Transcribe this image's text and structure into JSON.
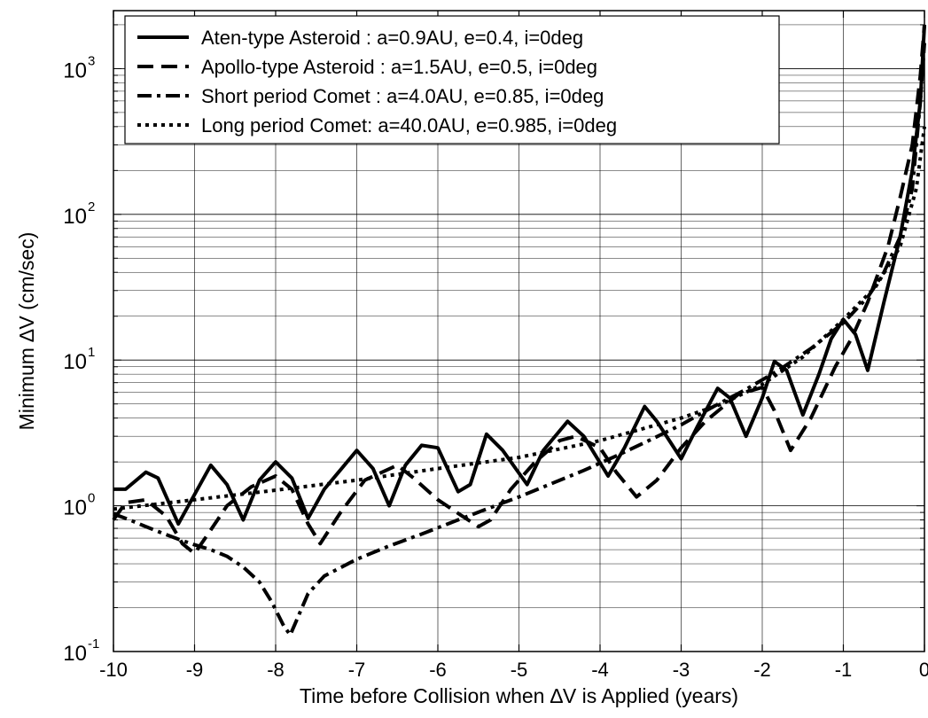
{
  "chart_data": {
    "type": "line",
    "title": "",
    "xlabel": "Time before Collision when ∆V is Applied (years)",
    "ylabel": "Minimum  ∆V (cm/sec)",
    "xlim": [
      -10,
      0
    ],
    "ylim": [
      0.1,
      2500
    ],
    "yscale": "log",
    "grid": true,
    "legend_position": "top-left",
    "x_ticks": [
      "-10",
      "-9",
      "-8",
      "-7",
      "-6",
      "-5",
      "-4",
      "-3",
      "-2",
      "-1",
      "0"
    ],
    "y_ticks": [
      {
        "base": "10",
        "exp": "-1"
      },
      {
        "base": "10",
        "exp": "0"
      },
      {
        "base": "10",
        "exp": "1"
      },
      {
        "base": "10",
        "exp": "2"
      },
      {
        "base": "10",
        "exp": "3"
      }
    ],
    "series": [
      {
        "name": "Aten-type Asteroid : a=0.9AU, e=0.4, i=0deg",
        "style": "solid",
        "color": "#000000",
        "x": [
          -10.0,
          -9.85,
          -9.6,
          -9.45,
          -9.2,
          -9.1,
          -8.8,
          -8.6,
          -8.4,
          -8.2,
          -8.0,
          -7.8,
          -7.6,
          -7.4,
          -7.0,
          -6.8,
          -6.6,
          -6.4,
          -6.2,
          -6.0,
          -5.75,
          -5.6,
          -5.4,
          -5.2,
          -4.9,
          -4.7,
          -4.4,
          -4.2,
          -3.9,
          -3.7,
          -3.45,
          -3.3,
          -3.0,
          -2.8,
          -2.55,
          -2.4,
          -2.2,
          -2.0,
          -1.85,
          -1.7,
          -1.5,
          -1.3,
          -1.15,
          -1.0,
          -0.85,
          -0.7,
          -0.5,
          -0.3,
          -0.15,
          -0.05,
          0.0
        ],
        "y": [
          1.3,
          1.3,
          1.7,
          1.55,
          0.75,
          0.95,
          1.9,
          1.4,
          0.8,
          1.5,
          2.0,
          1.55,
          0.82,
          1.3,
          2.4,
          1.8,
          1.0,
          1.9,
          2.6,
          2.5,
          1.25,
          1.4,
          3.1,
          2.4,
          1.4,
          2.4,
          3.8,
          3.0,
          1.6,
          2.5,
          4.8,
          3.8,
          2.1,
          3.5,
          6.4,
          5.5,
          3.0,
          5.5,
          9.8,
          8.5,
          4.2,
          8.0,
          14.0,
          19.0,
          15.0,
          8.5,
          25.0,
          70.0,
          200.0,
          600.0,
          2000.0
        ]
      },
      {
        "name": "Apollo-type Asteroid : a=1.5AU, e=0.5, i=0deg",
        "style": "dashed",
        "color": "#000000",
        "x": [
          -10.0,
          -9.85,
          -9.6,
          -9.35,
          -9.15,
          -9.0,
          -8.85,
          -8.6,
          -8.3,
          -8.0,
          -7.8,
          -7.6,
          -7.45,
          -7.2,
          -6.9,
          -6.5,
          -6.3,
          -6.0,
          -5.7,
          -5.5,
          -5.35,
          -5.1,
          -4.8,
          -4.5,
          -4.3,
          -4.0,
          -3.8,
          -3.55,
          -3.3,
          -3.0,
          -2.7,
          -2.3,
          -2.0,
          -1.85,
          -1.65,
          -1.4,
          -1.1,
          -0.9,
          -0.7,
          -0.45,
          -0.3,
          -0.15,
          -0.05,
          0.0
        ],
        "y": [
          0.8,
          1.05,
          1.1,
          0.85,
          0.55,
          0.47,
          0.62,
          1.0,
          1.35,
          1.6,
          1.3,
          0.75,
          0.55,
          0.9,
          1.5,
          1.9,
          1.55,
          1.1,
          0.85,
          0.72,
          0.8,
          1.3,
          2.0,
          2.8,
          3.0,
          2.5,
          1.7,
          1.15,
          1.5,
          2.5,
          3.8,
          5.8,
          6.5,
          4.5,
          2.4,
          4.0,
          9.0,
          14.0,
          25.0,
          60.0,
          130.0,
          300.0,
          900.0,
          2000.0
        ]
      },
      {
        "name": "Short period Comet : a=4.0AU, e=0.85, i=0deg",
        "style": "dashdot",
        "color": "#000000",
        "x": [
          -10.0,
          -9.8,
          -9.6,
          -9.4,
          -9.2,
          -9.0,
          -8.8,
          -8.6,
          -8.4,
          -8.2,
          -8.05,
          -7.9,
          -7.82,
          -7.75,
          -7.6,
          -7.4,
          -7.0,
          -6.6,
          -6.2,
          -5.8,
          -5.4,
          -5.0,
          -4.6,
          -4.2,
          -3.8,
          -3.4,
          -3.0,
          -2.6,
          -2.2,
          -1.8,
          -1.4,
          -1.0,
          -0.7,
          -0.5,
          -0.3,
          -0.15,
          -0.05,
          0.0
        ],
        "y": [
          0.88,
          0.8,
          0.72,
          0.65,
          0.59,
          0.54,
          0.5,
          0.45,
          0.38,
          0.3,
          0.22,
          0.15,
          0.13,
          0.16,
          0.25,
          0.33,
          0.43,
          0.53,
          0.64,
          0.78,
          0.95,
          1.15,
          1.42,
          1.75,
          2.2,
          2.8,
          3.6,
          4.8,
          6.3,
          8.5,
          12.0,
          18.0,
          27.0,
          40.0,
          70.0,
          150.0,
          600.0,
          1500.0
        ]
      },
      {
        "name": "Long period Comet: a=40.0AU, e=0.985, i=0deg",
        "style": "dotted",
        "color": "#000000",
        "x": [
          -10.0,
          -9.0,
          -8.0,
          -7.0,
          -6.0,
          -5.0,
          -4.0,
          -3.0,
          -2.5,
          -2.0,
          -1.5,
          -1.0,
          -0.6,
          -0.3,
          -0.1,
          0.0
        ],
        "y": [
          0.95,
          1.1,
          1.28,
          1.5,
          1.8,
          2.15,
          2.8,
          4.0,
          5.0,
          6.8,
          10.5,
          19.0,
          32.0,
          60.0,
          150.0,
          400.0
        ]
      }
    ]
  }
}
